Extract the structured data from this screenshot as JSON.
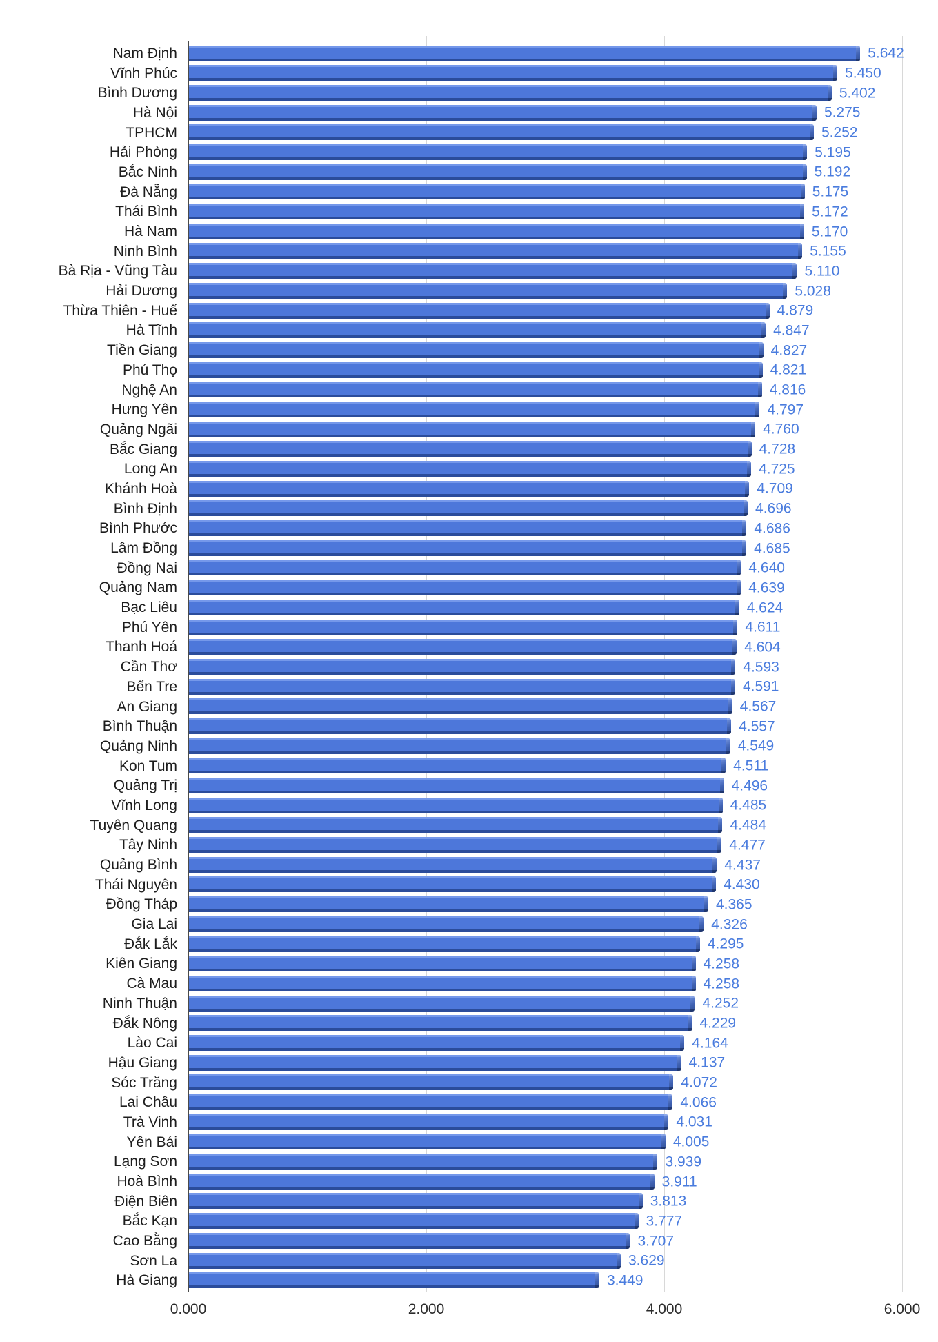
{
  "chart_data": {
    "type": "bar",
    "orientation": "horizontal",
    "title": "",
    "xlabel": "",
    "ylabel": "",
    "xlim": [
      0,
      6000
    ],
    "grid": true,
    "legend": "none",
    "x_ticks": [
      {
        "value": 0,
        "label": "0.000"
      },
      {
        "value": 2000,
        "label": "2.000"
      },
      {
        "value": 4000,
        "label": "4.000"
      },
      {
        "value": 6000,
        "label": "6.000"
      }
    ],
    "colors": {
      "bar_body": "#4d77da",
      "bar_highlight": "#7598ea",
      "bar_shadow": "#2b4c9b",
      "value_label": "#4a7cde",
      "category_label": "#1d1d1d",
      "gridline": "#d8d8d8",
      "axis_baseline": "#4a4a4a"
    },
    "categories": [
      "Nam Định",
      "Vĩnh Phúc",
      "Bình Dương",
      "Hà Nội",
      "TPHCM",
      "Hải Phòng",
      "Bắc Ninh",
      "Đà Nẵng",
      "Thái Bình",
      "Hà Nam",
      "Ninh Bình",
      "Bà Rịa - Vũng Tàu",
      "Hải Dương",
      "Thừa Thiên - Huế",
      "Hà Tĩnh",
      "Tiền Giang",
      "Phú Thọ",
      "Nghệ An",
      "Hưng Yên",
      "Quảng Ngãi",
      "Bắc Giang",
      "Long An",
      "Khánh Hoà",
      "Bình Định",
      "Bình Phước",
      "Lâm Đồng",
      "Đồng Nai",
      "Quảng Nam",
      "Bạc Liêu",
      "Phú Yên",
      "Thanh Hoá",
      "Cần Thơ",
      "Bến Tre",
      "An Giang",
      "Bình Thuận",
      "Quảng Ninh",
      "Kon Tum",
      "Quảng Trị",
      "Vĩnh Long",
      "Tuyên Quang",
      "Tây Ninh",
      "Quảng Bình",
      "Thái Nguyên",
      "Đồng Tháp",
      "Gia Lai",
      "Đắk Lắk",
      "Kiên Giang",
      "Cà Mau",
      "Ninh Thuận",
      "Đắk Nông",
      "Lào Cai",
      "Hậu Giang",
      "Sóc Trăng",
      "Lai Châu",
      "Trà Vinh",
      "Yên Bái",
      "Lạng Sơn",
      "Hoà Bình",
      "Điện Biên",
      "Bắc Kạn",
      "Cao Bằng",
      "Sơn La",
      "Hà Giang"
    ],
    "values": [
      5642,
      5450,
      5402,
      5275,
      5252,
      5195,
      5192,
      5175,
      5172,
      5170,
      5155,
      5110,
      5028,
      4879,
      4847,
      4827,
      4821,
      4816,
      4797,
      4760,
      4728,
      4725,
      4709,
      4696,
      4686,
      4685,
      4640,
      4639,
      4624,
      4611,
      4604,
      4593,
      4591,
      4567,
      4557,
      4549,
      4511,
      4496,
      4485,
      4484,
      4477,
      4437,
      4430,
      4365,
      4326,
      4295,
      4258,
      4258,
      4252,
      4229,
      4164,
      4137,
      4072,
      4066,
      4031,
      4005,
      3939,
      3911,
      3813,
      3777,
      3707,
      3629,
      3449
    ],
    "value_label_format": "thousands-dot"
  }
}
